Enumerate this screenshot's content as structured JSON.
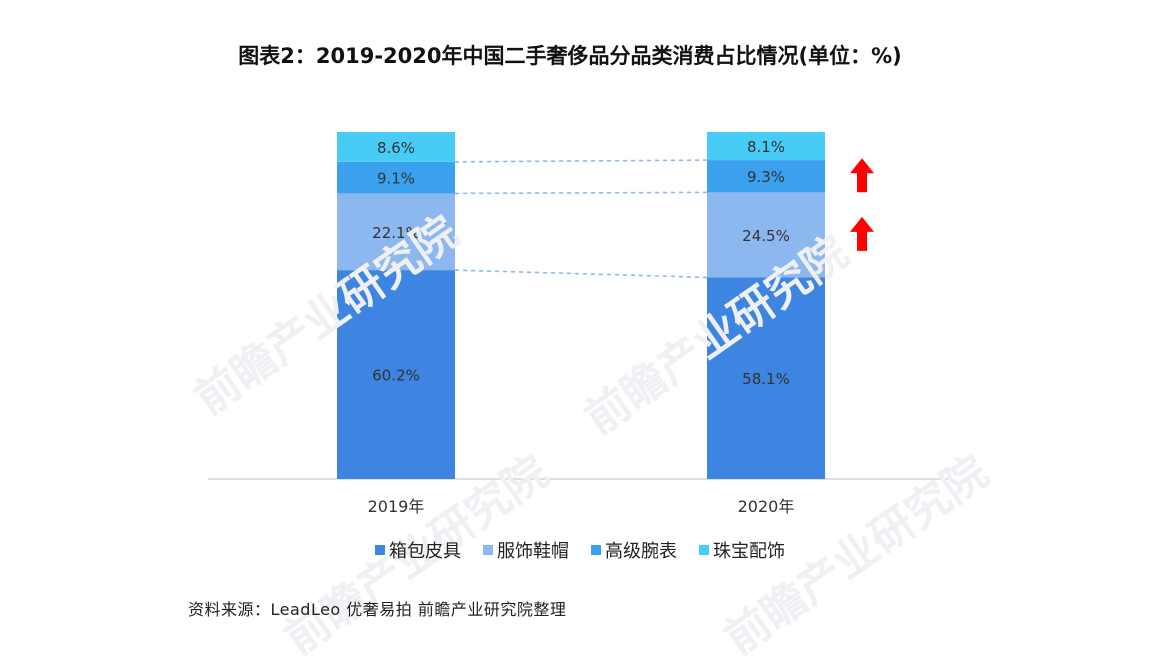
{
  "chart_data": {
    "type": "stacked_bar",
    "title": "图表2：2019-2020年中国二手奢侈品分品类消费占比情况(单位：%)",
    "unit": "%",
    "categories": [
      "2019年",
      "2020年"
    ],
    "series": [
      {
        "name": "箱包皮具",
        "values": [
          60.2,
          58.1
        ],
        "labels": [
          "60.2%",
          "58.1%"
        ],
        "color": "#3d85e0"
      },
      {
        "name": "服饰鞋帽",
        "values": [
          22.1,
          24.5
        ],
        "labels": [
          "22.1%",
          "24.5%"
        ],
        "color": "#8db7ef"
      },
      {
        "name": "高级腕表",
        "values": [
          9.1,
          9.3
        ],
        "labels": [
          "9.1%",
          "9.3%"
        ],
        "color": "#3ba1ef"
      },
      {
        "name": "珠宝配饰",
        "values": [
          8.6,
          8.1
        ],
        "labels": [
          "8.6%",
          "8.1%"
        ],
        "color": "#47ccf5"
      }
    ],
    "increase_arrows": [
      "高级腕表",
      "服饰鞋帽"
    ],
    "arrow_color": "#ff0000",
    "legend_position": "bottom"
  },
  "source": "资料来源：LeadLeo 优奢易拍 前瞻产业研究院整理",
  "watermark_text": "前瞻产业研究院"
}
